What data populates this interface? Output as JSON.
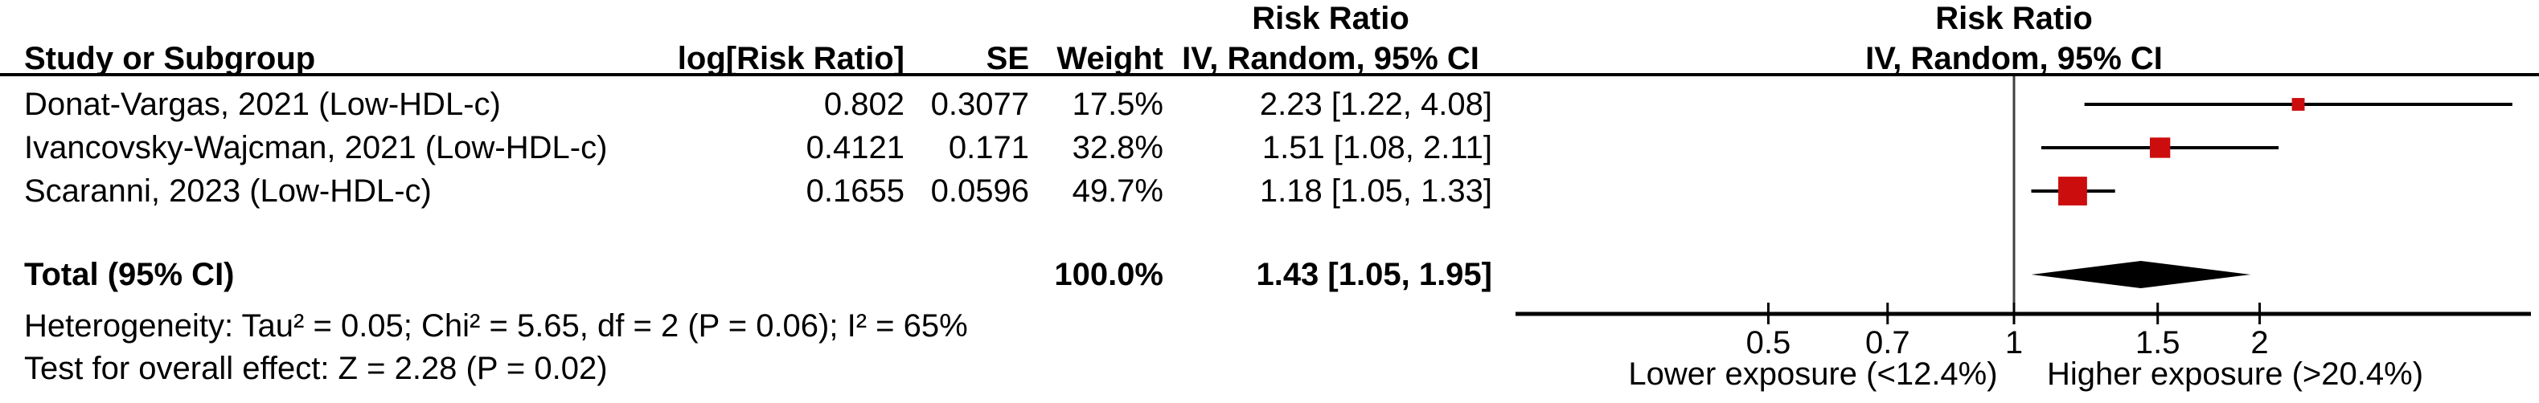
{
  "header": {
    "study_col": "Study or Subgroup",
    "log_rr_col": "log[Risk Ratio]",
    "se_col": "SE",
    "weight_col": "Weight",
    "effect_col_title": "Risk Ratio",
    "effect_col_subtitle": "IV, Random, 95% CI",
    "plot_col_title": "Risk Ratio",
    "plot_col_subtitle": "IV, Random, 95% CI"
  },
  "rows": [
    {
      "study": "Donat-Vargas, 2021 (Low-HDL-c)",
      "log_rr": "0.802",
      "se": "0.3077",
      "weight": "17.5%",
      "ci": "2.23 [1.22, 4.08]"
    },
    {
      "study": "Ivancovsky-Wajcman, 2021 (Low-HDL-c)",
      "log_rr": "0.4121",
      "se": "0.171",
      "weight": "32.8%",
      "ci": "1.51 [1.08, 2.11]"
    },
    {
      "study": "Scaranni, 2023 (Low-HDL-c)",
      "log_rr": "0.1655",
      "se": "0.0596",
      "weight": "49.7%",
      "ci": "1.18 [1.05, 1.33]"
    }
  ],
  "total": {
    "label": "Total (95% CI)",
    "weight": "100.0%",
    "ci": "1.43 [1.05, 1.95]"
  },
  "footer": {
    "heterogeneity": "Heterogeneity: Tau² = 0.05; Chi² = 5.65, df = 2 (P = 0.06); I² = 65%",
    "overall_effect": "Test for overall effect: Z = 2.28 (P = 0.02)"
  },
  "chart_data": {
    "type": "forest",
    "x_scale": "log10",
    "x_ticks": [
      0.5,
      0.7,
      1,
      1.5,
      2
    ],
    "x_range": [
      0.24,
      4.35
    ],
    "reference_line": 1,
    "marker_color": "#CC0D0D",
    "diamond_color": "#000000",
    "studies": [
      {
        "name": "Donat-Vargas, 2021 (Low-HDL-c)",
        "rr": 2.23,
        "ci_low": 1.22,
        "ci_high": 4.08,
        "weight_pct": 17.5
      },
      {
        "name": "Ivancovsky-Wajcman, 2021 (Low-HDL-c)",
        "rr": 1.51,
        "ci_low": 1.08,
        "ci_high": 2.11,
        "weight_pct": 32.8
      },
      {
        "name": "Scaranni, 2023 (Low-HDL-c)",
        "rr": 1.18,
        "ci_low": 1.05,
        "ci_high": 1.33,
        "weight_pct": 49.7
      }
    ],
    "total": {
      "rr": 1.43,
      "ci_low": 1.05,
      "ci_high": 1.95,
      "weight_pct": 100.0
    },
    "axis_label_lower": "Lower exposure (<12.4%)",
    "axis_label_higher": "Higher exposure (>20.4%)"
  }
}
